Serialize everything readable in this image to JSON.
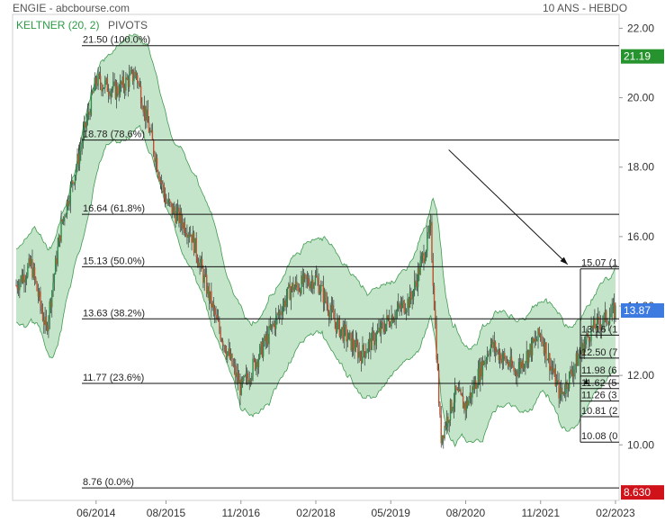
{
  "header": {
    "source": "ENGIE - abcbourse.com",
    "period": "10 ANS - HEBDO"
  },
  "legend": {
    "indicator": "KELTNER (20, 2)",
    "pivots": "PIVOTS"
  },
  "colors": {
    "up": "#2e8b4a",
    "down": "#c0502e",
    "band_fill": "#2ea043",
    "band_line": "#3f9a4f",
    "last_price_bg": "#3d7be0",
    "high_bg": "#27932f",
    "low_bg": "#d0121b"
  },
  "chart_data": {
    "type": "candlestick",
    "ylim": [
      8.4,
      22.4
    ],
    "yticks": [
      "22.00",
      "20.00",
      "18.00",
      "16.00",
      "14.00",
      "12.00",
      "10.00"
    ],
    "xticks": [
      "06/2014",
      "08/2015",
      "11/2016",
      "02/2018",
      "05/2019",
      "08/2020",
      "11/2021",
      "02/2023"
    ],
    "fibonacci": [
      {
        "value": 21.5,
        "label": "21.50  (100.0%)"
      },
      {
        "value": 18.78,
        "label": "18.78  (78.6%)"
      },
      {
        "value": 16.64,
        "label": "16.64  (61.8%)"
      },
      {
        "value": 15.13,
        "label": "15.13  (50.0%)"
      },
      {
        "value": 13.63,
        "label": "13.63  (38.2%)"
      },
      {
        "value": 11.77,
        "label": "11.77  (23.6%)"
      },
      {
        "value": 8.76,
        "label": "8.76  (0.0%)"
      }
    ],
    "right_fib_labels": [
      {
        "value": 15.07,
        "label": "15.07  (1"
      },
      {
        "value": 13.16,
        "label": "13.16  (1"
      },
      {
        "value": 12.5,
        "label": "12.50  (7"
      },
      {
        "value": 11.98,
        "label": "11.98  (6"
      },
      {
        "value": 11.62,
        "label": "11.62  (5"
      },
      {
        "value": 11.26,
        "label": "11.26  (3"
      },
      {
        "value": 10.81,
        "label": "10.81  (2"
      },
      {
        "value": 10.08,
        "label": "10.08  (0"
      }
    ],
    "price_tags": [
      {
        "value": 21.19,
        "label": "21.19",
        "kind": "high"
      },
      {
        "value": 13.87,
        "label": "13.87",
        "kind": "last"
      },
      {
        "value": 8.63,
        "label": "8.630",
        "kind": "low"
      }
    ],
    "price_path": [
      [
        "02/2013",
        14.6
      ],
      [
        "05/2013",
        15.2
      ],
      [
        "08/2013",
        13.3
      ],
      [
        "11/2013",
        16.3
      ],
      [
        "02/2014",
        18.0
      ],
      [
        "06/2014",
        20.5
      ],
      [
        "10/2014",
        20.2
      ],
      [
        "02/2015",
        20.7
      ],
      [
        "08/2015",
        17.0
      ],
      [
        "01/2016",
        16.1
      ],
      [
        "06/2016",
        13.6
      ],
      [
        "11/2016",
        11.6
      ],
      [
        "03/2017",
        12.7
      ],
      [
        "09/2017",
        14.5
      ],
      [
        "02/2018",
        14.8
      ],
      [
        "06/2018",
        13.5
      ],
      [
        "11/2018",
        12.6
      ],
      [
        "03/2019",
        13.3
      ],
      [
        "05/2019",
        13.7
      ],
      [
        "09/2019",
        14.2
      ],
      [
        "01/2020",
        16.2
      ],
      [
        "03/2020",
        10.2
      ],
      [
        "06/2020",
        11.5
      ],
      [
        "08/2020",
        11.1
      ],
      [
        "01/2021",
        12.9
      ],
      [
        "06/2021",
        12.1
      ],
      [
        "11/2021",
        13.2
      ],
      [
        "03/2022",
        11.4
      ],
      [
        "09/2022",
        13.3
      ],
      [
        "02/2023",
        13.87
      ]
    ],
    "arrow": {
      "from": [
        "01/2020",
        18.5
      ],
      "to": [
        "11/2021",
        15.2
      ]
    }
  }
}
